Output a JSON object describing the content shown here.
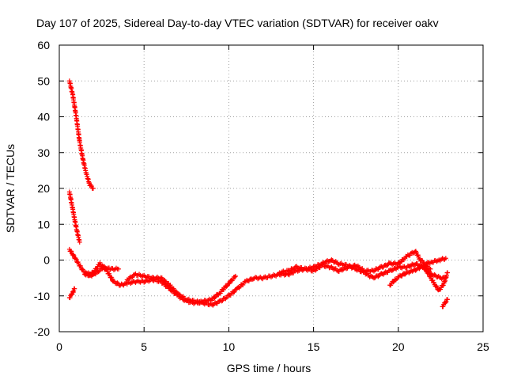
{
  "chart_data": {
    "type": "scatter",
    "title": "Day 107 of 2025, Sidereal Day-to-day VTEC variation (SDTVAR) for receiver oakv",
    "xlabel": "GPS time / hours",
    "ylabel": "SDTVAR / TECUs",
    "xlim": [
      0,
      25
    ],
    "ylim": [
      -20,
      60
    ],
    "xticks": [
      0,
      5,
      10,
      15,
      20,
      25
    ],
    "yticks": [
      -20,
      -10,
      0,
      10,
      20,
      30,
      40,
      50,
      60
    ],
    "grid": true,
    "marker": "+",
    "color": "#ff0000",
    "series": [
      {
        "name": "seg-high",
        "x": [
          0.6,
          0.8,
          1.0,
          1.2,
          1.4,
          1.6,
          1.8,
          2.0
        ],
        "y": [
          50,
          46,
          40,
          33,
          28,
          24,
          21,
          20
        ]
      },
      {
        "name": "seg-mid",
        "x": [
          0.6,
          0.8,
          1.0,
          1.2
        ],
        "y": [
          19,
          14,
          9,
          5
        ]
      },
      {
        "name": "seg-low-start",
        "x": [
          0.6,
          0.8,
          0.9
        ],
        "y": [
          -10.5,
          -9,
          -8
        ]
      },
      {
        "name": "trace-a",
        "x": [
          0.6,
          1.0,
          1.4,
          1.8,
          2.2,
          2.6,
          3.0,
          3.5
        ],
        "y": [
          3,
          0,
          -3,
          -4.5,
          -3.5,
          -2,
          -2.5,
          -2.5
        ]
      },
      {
        "name": "trace-b",
        "x": [
          1.5,
          2.0,
          2.4,
          2.8,
          3.2,
          3.6,
          4.0,
          4.5,
          5.0,
          5.5,
          6.0,
          6.5,
          7.0,
          7.5,
          8.0,
          8.5,
          9.0,
          9.5,
          10.0,
          10.4
        ],
        "y": [
          -4,
          -3.5,
          -1,
          -3,
          -6,
          -7,
          -6.5,
          -6,
          -6,
          -5.5,
          -6,
          -8,
          -10,
          -11.5,
          -12,
          -11.5,
          -11,
          -9,
          -6.5,
          -4.5
        ]
      },
      {
        "name": "trace-c",
        "x": [
          4.0,
          4.5,
          5.0,
          5.5,
          6.0,
          6.5,
          7.0,
          7.5,
          8.0,
          8.5,
          9.0,
          9.5,
          10.0,
          10.5,
          11.0,
          11.5,
          12.0,
          12.5,
          13.0,
          13.5,
          14.0,
          14.5,
          15.0,
          15.5,
          16.0,
          16.5,
          17.0,
          17.5,
          18.0,
          18.5,
          19.0,
          19.5,
          20.0,
          20.5,
          21.0,
          21.3,
          21.6,
          22.0,
          22.4,
          22.8
        ],
        "y": [
          -5.5,
          -4,
          -4.5,
          -5,
          -5,
          -7,
          -9.5,
          -11,
          -11.5,
          -12,
          -12.5,
          -11.5,
          -10,
          -8,
          -6,
          -5,
          -5,
          -4.5,
          -4,
          -4,
          -3,
          -2.5,
          -3,
          -1.5,
          -2,
          -3,
          -2,
          -1.5,
          -3,
          -3,
          -2,
          -1,
          -1,
          1,
          2.5,
          0,
          -1,
          -0.5,
          0,
          0.5
        ]
      },
      {
        "name": "trace-d",
        "x": [
          13.0,
          13.5,
          14.0,
          14.5,
          15.0,
          15.5,
          16.0,
          16.5,
          17.0,
          17.5,
          18.0,
          18.5,
          19.0,
          19.5,
          20.0,
          20.5,
          21.0,
          21.5,
          22.0,
          22.5,
          22.8
        ],
        "y": [
          -3.5,
          -3,
          -2,
          -2.5,
          -2,
          -1,
          0,
          -1,
          -1.5,
          -2.5,
          -3.5,
          -5,
          -4,
          -3,
          -2,
          -2,
          -1,
          -2,
          -4,
          -5,
          -5
        ]
      },
      {
        "name": "trace-e",
        "x": [
          19.5,
          19.8,
          20.1,
          20.5,
          20.9,
          21.3,
          21.6,
          21.9
        ],
        "y": [
          -7,
          -5.5,
          -4.5,
          -3.5,
          -3,
          -2,
          -1.5,
          -2.5
        ]
      },
      {
        "name": "trace-f",
        "x": [
          21.5,
          21.8,
          22.1,
          22.4,
          22.7,
          22.9
        ],
        "y": [
          -2,
          -4,
          -6.5,
          -8.5,
          -6.5,
          -3.5
        ]
      },
      {
        "name": "seg-low-end",
        "x": [
          22.6,
          22.75,
          22.9
        ],
        "y": [
          -13,
          -12,
          -11
        ]
      }
    ]
  }
}
